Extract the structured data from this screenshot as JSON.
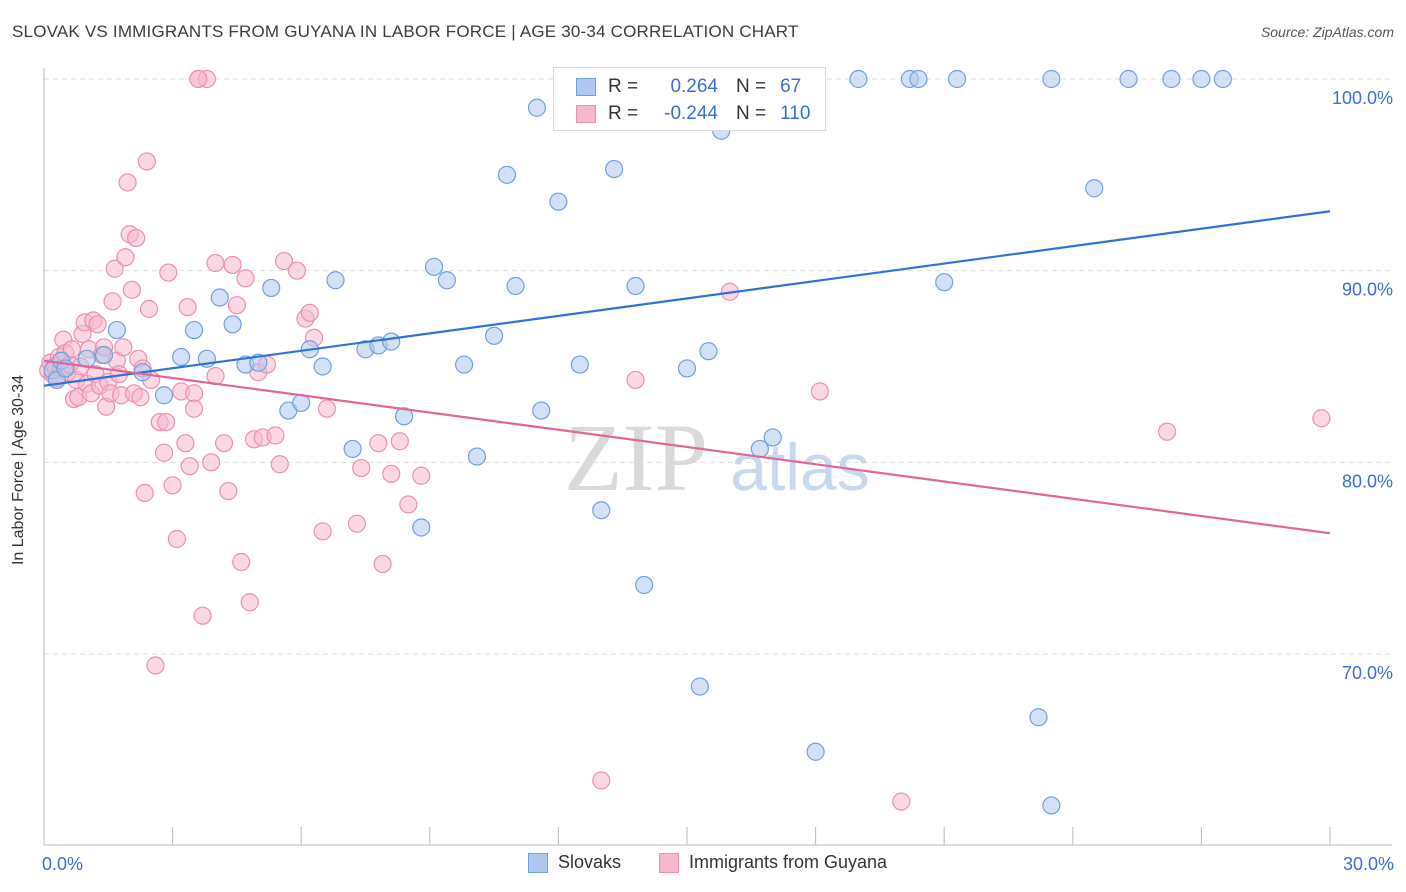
{
  "title": "SLOVAK VS IMMIGRANTS FROM GUYANA IN LABOR FORCE | AGE 30-34 CORRELATION CHART",
  "source": "Source: ZipAtlas.com",
  "watermark": {
    "zip": "ZIP",
    "atlas": "atlas"
  },
  "legend": {
    "r_label": "R =",
    "n_label": "N =",
    "rows": [
      {
        "r": "0.264",
        "n": "67"
      },
      {
        "r": "-0.244",
        "n": "110"
      }
    ]
  },
  "colors": {
    "slovak_fill": "#aec8ef",
    "slovak_stroke": "#6f9fe0",
    "slovak_line": "#2f72d6",
    "guyana_fill": "#f7b8cc",
    "guyana_stroke": "#ec8fae",
    "guyana_line": "#e0669a",
    "tick_label": "#3a6fd1",
    "grid": "#dedede"
  },
  "chart_data": {
    "type": "scatter",
    "title": "SLOVAK VS IMMIGRANTS FROM GUYANA IN LABOR FORCE | AGE 30-34 CORRELATION CHART",
    "xlabel": "",
    "ylabel": "In Labor Force | Age 30-34",
    "xlim": [
      0,
      30
    ],
    "ylim": [
      60.5,
      101.5
    ],
    "x_ticks": [
      0,
      3,
      6,
      9,
      12,
      15,
      18,
      21,
      24,
      27,
      30
    ],
    "x_tick_labels": [
      {
        "x": 0,
        "label": "0.0%"
      },
      {
        "x": 30,
        "label": "30.0%"
      }
    ],
    "y_ticks": [
      {
        "y": 70,
        "label": "70.0%"
      },
      {
        "y": 80,
        "label": "80.0%"
      },
      {
        "y": 90,
        "label": "90.0%"
      },
      {
        "y": 100,
        "label": "100.0%"
      }
    ],
    "grid": true,
    "legend_position": "bottom",
    "series": [
      {
        "name": "Slovaks",
        "r": 0.264,
        "n": 67,
        "trend": {
          "x": [
            0,
            30
          ],
          "y": [
            84.0,
            93.1
          ]
        },
        "points": [
          [
            0.2,
            84.8
          ],
          [
            0.3,
            84.3
          ],
          [
            0.4,
            85.3
          ],
          [
            0.5,
            84.9
          ],
          [
            1.0,
            85.4
          ],
          [
            1.4,
            85.6
          ],
          [
            1.7,
            86.9
          ],
          [
            2.3,
            84.7
          ],
          [
            2.8,
            83.5
          ],
          [
            3.2,
            85.5
          ],
          [
            3.5,
            86.9
          ],
          [
            3.8,
            85.4
          ],
          [
            4.1,
            88.6
          ],
          [
            4.4,
            87.2
          ],
          [
            4.7,
            85.1
          ],
          [
            5.0,
            85.2
          ],
          [
            5.3,
            89.1
          ],
          [
            5.7,
            82.7
          ],
          [
            6.0,
            83.1
          ],
          [
            6.2,
            85.9
          ],
          [
            6.5,
            85.0
          ],
          [
            6.8,
            89.5
          ],
          [
            7.2,
            80.7
          ],
          [
            7.5,
            85.9
          ],
          [
            7.8,
            86.1
          ],
          [
            8.1,
            86.3
          ],
          [
            8.4,
            82.4
          ],
          [
            8.8,
            76.6
          ],
          [
            9.1,
            90.2
          ],
          [
            9.4,
            89.5
          ],
          [
            9.8,
            85.1
          ],
          [
            10.1,
            80.3
          ],
          [
            10.5,
            86.6
          ],
          [
            10.8,
            95.0
          ],
          [
            11.0,
            89.2
          ],
          [
            11.5,
            98.5
          ],
          [
            11.6,
            82.7
          ],
          [
            12.0,
            93.6
          ],
          [
            12.5,
            85.1
          ],
          [
            12.6,
            100.0
          ],
          [
            13.0,
            77.5
          ],
          [
            13.3,
            95.3
          ],
          [
            13.5,
            100.0
          ],
          [
            13.8,
            89.2
          ],
          [
            14.0,
            73.6
          ],
          [
            15.0,
            84.9
          ],
          [
            15.3,
            68.3
          ],
          [
            15.5,
            85.8
          ],
          [
            15.8,
            97.3
          ],
          [
            16.0,
            100.0
          ],
          [
            16.7,
            80.7
          ],
          [
            17.0,
            81.3
          ],
          [
            18.0,
            64.9
          ],
          [
            19.0,
            100.0
          ],
          [
            20.2,
            100.0
          ],
          [
            20.4,
            100.0
          ],
          [
            21.0,
            89.4
          ],
          [
            21.3,
            100.0
          ],
          [
            23.2,
            66.7
          ],
          [
            23.5,
            62.1
          ],
          [
            23.5,
            100.0
          ],
          [
            24.5,
            94.3
          ],
          [
            25.3,
            100.0
          ],
          [
            26.3,
            100.0
          ],
          [
            27.0,
            100.0
          ],
          [
            27.5,
            100.0
          ]
        ]
      },
      {
        "name": "Immigrants from Guyana",
        "r": -0.244,
        "n": 110,
        "trend": {
          "x": [
            0,
            30
          ],
          "y": [
            85.3,
            76.3
          ]
        },
        "points": [
          [
            0.1,
            84.8
          ],
          [
            0.15,
            85.2
          ],
          [
            0.2,
            84.6
          ],
          [
            0.25,
            85.0
          ],
          [
            0.3,
            84.4
          ],
          [
            0.35,
            85.5
          ],
          [
            0.4,
            84.9
          ],
          [
            0.45,
            86.4
          ],
          [
            0.5,
            85.7
          ],
          [
            0.55,
            84.7
          ],
          [
            0.6,
            85.1
          ],
          [
            0.65,
            85.9
          ],
          [
            0.7,
            83.3
          ],
          [
            0.75,
            84.3
          ],
          [
            0.8,
            83.4
          ],
          [
            0.85,
            85.0
          ],
          [
            0.9,
            86.7
          ],
          [
            0.95,
            87.3
          ],
          [
            1.0,
            84.1
          ],
          [
            1.05,
            85.9
          ],
          [
            1.1,
            83.6
          ],
          [
            1.15,
            87.4
          ],
          [
            1.2,
            84.6
          ],
          [
            1.25,
            87.2
          ],
          [
            1.3,
            84.0
          ],
          [
            1.35,
            85.6
          ],
          [
            1.4,
            86.0
          ],
          [
            1.45,
            82.9
          ],
          [
            1.5,
            84.2
          ],
          [
            1.55,
            83.6
          ],
          [
            1.6,
            88.4
          ],
          [
            1.65,
            90.1
          ],
          [
            1.7,
            85.3
          ],
          [
            1.75,
            84.6
          ],
          [
            1.8,
            83.5
          ],
          [
            1.85,
            86.0
          ],
          [
            1.9,
            90.7
          ],
          [
            1.95,
            94.6
          ],
          [
            2.0,
            91.9
          ],
          [
            2.05,
            89.0
          ],
          [
            2.1,
            83.6
          ],
          [
            2.15,
            91.7
          ],
          [
            2.2,
            85.4
          ],
          [
            2.25,
            83.4
          ],
          [
            2.3,
            84.9
          ],
          [
            2.35,
            78.4
          ],
          [
            2.4,
            95.7
          ],
          [
            2.45,
            88.0
          ],
          [
            2.5,
            84.3
          ],
          [
            2.6,
            69.4
          ],
          [
            2.7,
            82.1
          ],
          [
            2.8,
            80.5
          ],
          [
            2.85,
            82.1
          ],
          [
            2.9,
            89.9
          ],
          [
            3.0,
            78.8
          ],
          [
            3.1,
            76.0
          ],
          [
            3.2,
            83.7
          ],
          [
            3.3,
            81.0
          ],
          [
            3.35,
            88.1
          ],
          [
            3.4,
            79.8
          ],
          [
            3.5,
            83.6
          ],
          [
            3.5,
            82.8
          ],
          [
            3.6,
            100.0
          ],
          [
            3.7,
            72.0
          ],
          [
            3.8,
            100.0
          ],
          [
            3.9,
            80.0
          ],
          [
            4.0,
            84.5
          ],
          [
            4.0,
            90.4
          ],
          [
            4.2,
            81.0
          ],
          [
            4.3,
            78.5
          ],
          [
            4.4,
            90.3
          ],
          [
            4.5,
            88.2
          ],
          [
            4.6,
            74.8
          ],
          [
            4.7,
            89.6
          ],
          [
            4.8,
            72.7
          ],
          [
            4.9,
            81.2
          ],
          [
            5.0,
            84.7
          ],
          [
            5.1,
            81.3
          ],
          [
            5.2,
            85.1
          ],
          [
            5.4,
            81.4
          ],
          [
            5.5,
            79.9
          ],
          [
            5.6,
            90.5
          ],
          [
            5.9,
            90.0
          ],
          [
            6.1,
            87.5
          ],
          [
            6.2,
            87.8
          ],
          [
            6.3,
            86.5
          ],
          [
            6.5,
            76.4
          ],
          [
            6.6,
            82.8
          ],
          [
            7.3,
            76.8
          ],
          [
            7.4,
            79.7
          ],
          [
            7.8,
            81.0
          ],
          [
            7.9,
            74.7
          ],
          [
            8.1,
            79.4
          ],
          [
            8.3,
            81.1
          ],
          [
            8.5,
            77.8
          ],
          [
            8.8,
            79.3
          ],
          [
            13.0,
            63.4
          ],
          [
            13.8,
            84.3
          ],
          [
            3.6,
            100.0
          ],
          [
            16.0,
            88.9
          ],
          [
            18.1,
            83.7
          ],
          [
            20.0,
            62.3
          ],
          [
            26.2,
            81.6
          ],
          [
            29.8,
            82.3
          ]
        ]
      }
    ]
  },
  "bottom_legend": [
    "Slovaks",
    "Immigrants from Guyana"
  ]
}
